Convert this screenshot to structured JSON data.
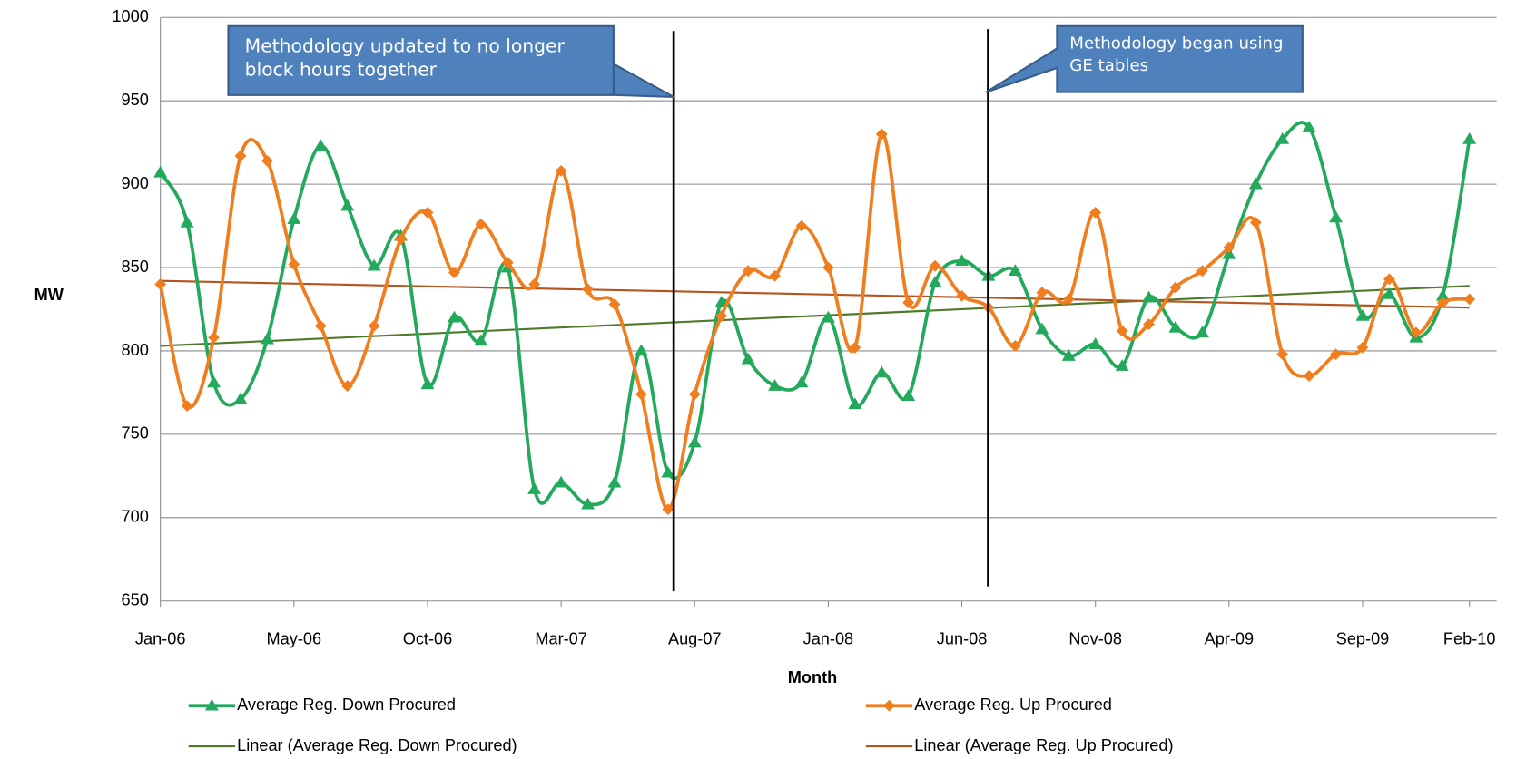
{
  "chart_data": {
    "type": "line",
    "y_label": "MW",
    "x_label": "Month",
    "categories": [
      "Jan-06",
      null,
      null,
      null,
      null,
      "May-06",
      null,
      null,
      null,
      null,
      "Oct-06",
      null,
      null,
      null,
      null,
      "Mar-07",
      null,
      null,
      null,
      null,
      "Aug-07",
      null,
      null,
      null,
      null,
      "Jan-08",
      null,
      null,
      null,
      null,
      "Jun-08",
      null,
      null,
      null,
      null,
      "Nov-08",
      null,
      null,
      null,
      null,
      "Apr-09",
      null,
      null,
      null,
      null,
      "Sep-09",
      null,
      null,
      null,
      "Feb-10"
    ],
    "series": [
      {
        "name": "Average Reg. Down Procured",
        "color": "#22a95b",
        "marker": "triangle",
        "values": [
          907,
          877,
          781,
          771,
          807,
          879,
          923,
          887,
          851,
          869,
          780,
          820,
          806,
          850,
          717,
          721,
          708,
          721,
          800,
          727,
          745,
          829,
          795,
          779,
          781,
          820,
          768,
          787,
          773,
          841,
          854,
          845,
          848,
          813,
          797,
          804,
          791,
          832,
          814,
          811,
          858,
          900,
          927,
          934,
          880,
          821,
          834,
          808,
          833,
          927
        ]
      },
      {
        "name": "Average Reg. Up Procured",
        "color": "#f07d1e",
        "marker": "diamond",
        "values": [
          840,
          767,
          808,
          917,
          914,
          852,
          815,
          779,
          815,
          867,
          883,
          847,
          876,
          853,
          840,
          908,
          837,
          828,
          774,
          705,
          774,
          821,
          848,
          845,
          875,
          850,
          802,
          930,
          829,
          851,
          833,
          826,
          803,
          835,
          831,
          883,
          812,
          816,
          838,
          848,
          862,
          877,
          798,
          785,
          798,
          802,
          843,
          811,
          829,
          831
        ]
      }
    ],
    "trendlines": [
      {
        "name": "Linear (Average Reg. Down Procured)",
        "color": "#4e7a2a",
        "start": 803,
        "end": 839
      },
      {
        "name": "Linear (Average Reg. Up Procured)",
        "color": "#b4541e",
        "start": 842,
        "end": 826
      }
    ],
    "ylim": [
      650,
      1000
    ],
    "yticks": [
      650,
      700,
      750,
      800,
      850,
      900,
      950,
      1000
    ],
    "grid": true,
    "annotations": [
      "Methodology updated to no longer block hours together",
      "Methodology began using GE tables"
    ]
  }
}
